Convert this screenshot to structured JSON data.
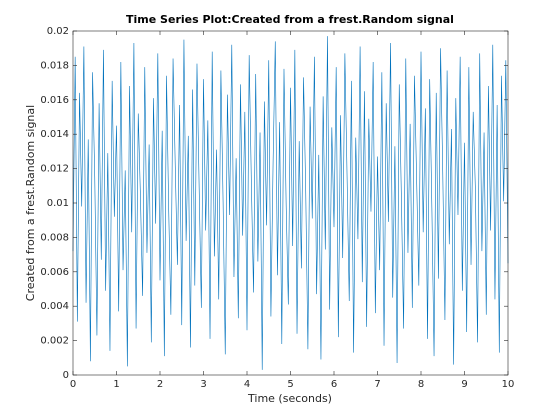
{
  "chart_data": {
    "type": "line",
    "title": "Time Series Plot:Created from a frest.Random signal",
    "x_label": "Time (seconds)",
    "y_label": "Created from a frest.Random signal",
    "xlim": [
      0,
      10
    ],
    "xticks": [
      0,
      1,
      2,
      3,
      4,
      5,
      6,
      7,
      8,
      9,
      10
    ],
    "ylim": [
      0,
      0.02
    ],
    "yticks": [
      0,
      0.002,
      0.004,
      0.006,
      0.008,
      0.01,
      0.012,
      0.014,
      0.016,
      0.018,
      0.02
    ],
    "grid": false,
    "x": [
      0,
      0.05,
      0.1,
      0.15,
      0.2,
      0.25,
      0.3,
      0.35,
      0.4,
      0.45,
      0.5,
      0.55,
      0.6,
      0.65,
      0.7,
      0.75,
      0.8,
      0.85,
      0.9,
      0.95,
      1,
      1.05,
      1.1,
      1.15,
      1.2,
      1.25,
      1.3,
      1.35,
      1.4,
      1.45,
      1.5,
      1.55,
      1.6,
      1.65,
      1.7,
      1.75,
      1.8,
      1.85,
      1.9,
      1.95,
      2,
      2.05,
      2.1,
      2.15,
      2.2,
      2.25,
      2.3,
      2.35,
      2.4,
      2.45,
      2.5,
      2.55,
      2.6,
      2.65,
      2.7,
      2.75,
      2.8,
      2.85,
      2.9,
      2.95,
      3,
      3.05,
      3.1,
      3.15,
      3.2,
      3.25,
      3.3,
      3.35,
      3.4,
      3.45,
      3.5,
      3.55,
      3.6,
      3.65,
      3.7,
      3.75,
      3.8,
      3.85,
      3.9,
      3.95,
      4,
      4.05,
      4.1,
      4.15,
      4.2,
      4.25,
      4.3,
      4.35,
      4.4,
      4.45,
      4.5,
      4.55,
      4.6,
      4.65,
      4.7,
      4.75,
      4.8,
      4.85,
      4.9,
      4.95,
      5,
      5.05,
      5.1,
      5.15,
      5.2,
      5.25,
      5.3,
      5.35,
      5.4,
      5.45,
      5.5,
      5.55,
      5.6,
      5.65,
      5.7,
      5.75,
      5.8,
      5.85,
      5.9,
      5.95,
      6,
      6.05,
      6.1,
      6.15,
      6.2,
      6.25,
      6.3,
      6.35,
      6.4,
      6.45,
      6.5,
      6.55,
      6.6,
      6.65,
      6.7,
      6.75,
      6.8,
      6.85,
      6.9,
      6.95,
      7,
      7.05,
      7.1,
      7.15,
      7.2,
      7.25,
      7.3,
      7.35,
      7.4,
      7.45,
      7.5,
      7.55,
      7.6,
      7.65,
      7.7,
      7.75,
      7.8,
      7.85,
      7.9,
      7.95,
      8,
      8.05,
      8.1,
      8.15,
      8.2,
      8.25,
      8.3,
      8.35,
      8.4,
      8.45,
      8.5,
      8.55,
      8.6,
      8.65,
      8.7,
      8.75,
      8.8,
      8.85,
      8.9,
      8.95,
      9,
      9.05,
      9.1,
      9.15,
      9.2,
      9.25,
      9.3,
      9.35,
      9.4,
      9.45,
      9.5,
      9.55,
      9.6,
      9.65,
      9.7,
      9.75,
      9.8,
      9.85,
      9.9,
      9.95,
      10
    ],
    "series": [
      {
        "color": "#0072bd",
        "values": [
          0.0072,
          0.0185,
          0.0031,
          0.0164,
          0.0098,
          0.0191,
          0.0042,
          0.0137,
          0.0008,
          0.0176,
          0.0115,
          0.0023,
          0.0158,
          0.0067,
          0.0189,
          0.0049,
          0.0129,
          0.0014,
          0.0171,
          0.0092,
          0.0145,
          0.0037,
          0.0182,
          0.0061,
          0.0119,
          0.0005,
          0.0168,
          0.0083,
          0.0193,
          0.0027,
          0.0152,
          0.0104,
          0.0046,
          0.0179,
          0.0071,
          0.0134,
          0.0019,
          0.0161,
          0.0088,
          0.0187,
          0.0055,
          0.0142,
          0.0011,
          0.0174,
          0.0096,
          0.0035,
          0.0184,
          0.0122,
          0.0064,
          0.0157,
          0.0029,
          0.0195,
          0.0078,
          0.0139,
          0.0016,
          0.0166,
          0.0052,
          0.0181,
          0.0109,
          0.0039,
          0.0172,
          0.0084,
          0.0148,
          0.0021,
          0.0188,
          0.0069,
          0.0131,
          0.0044,
          0.0177,
          0.0101,
          0.0012,
          0.0163,
          0.0093,
          0.0192,
          0.0057,
          0.0126,
          0.0033,
          0.0169,
          0.0081,
          0.0153,
          0.0026,
          0.0186,
          0.0112,
          0.0048,
          0.0175,
          0.0066,
          0.0141,
          0.0003,
          0.0159,
          0.0087,
          0.0183,
          0.0034,
          0.0124,
          0.0194,
          0.0058,
          0.0147,
          0.0018,
          0.0178,
          0.0099,
          0.0041,
          0.0167,
          0.0075,
          0.0189,
          0.0024,
          0.0136,
          0.0062,
          0.0173,
          0.0107,
          0.0015,
          0.0156,
          0.0091,
          0.0185,
          0.0047,
          0.0128,
          0.0009,
          0.0162,
          0.0073,
          0.0197,
          0.0038,
          0.0144,
          0.0086,
          0.0179,
          0.0022,
          0.0151,
          0.0068,
          0.0187,
          0.0116,
          0.0043,
          0.0171,
          0.0013,
          0.0138,
          0.0079,
          0.0191,
          0.0054,
          0.0165,
          0.0028,
          0.0149,
          0.0095,
          0.0182,
          0.0036,
          0.0127,
          0.0061,
          0.0176,
          0.0017,
          0.0158,
          0.0089,
          0.0193,
          0.0045,
          0.0133,
          0.0007,
          0.0169,
          0.0102,
          0.0027,
          0.0184,
          0.0071,
          0.0146,
          0.0039,
          0.0174,
          0.0113,
          0.0052,
          0.0188,
          0.0083,
          0.0155,
          0.0021,
          0.0172,
          0.0097,
          0.0011,
          0.0164,
          0.0056,
          0.019,
          0.0118,
          0.0032,
          0.0177,
          0.0076,
          0.0143,
          0.0006,
          0.0161,
          0.0093,
          0.0185,
          0.0049,
          0.0135,
          0.0025,
          0.0179,
          0.0064,
          0.0153,
          0.0108,
          0.0019,
          0.0187,
          0.0072,
          0.0141,
          0.0035,
          0.0168,
          0.0084,
          0.0192,
          0.0044,
          0.0157,
          0.0013,
          0.0174,
          0.0101,
          0.0183,
          0.0065
        ]
      }
    ]
  }
}
